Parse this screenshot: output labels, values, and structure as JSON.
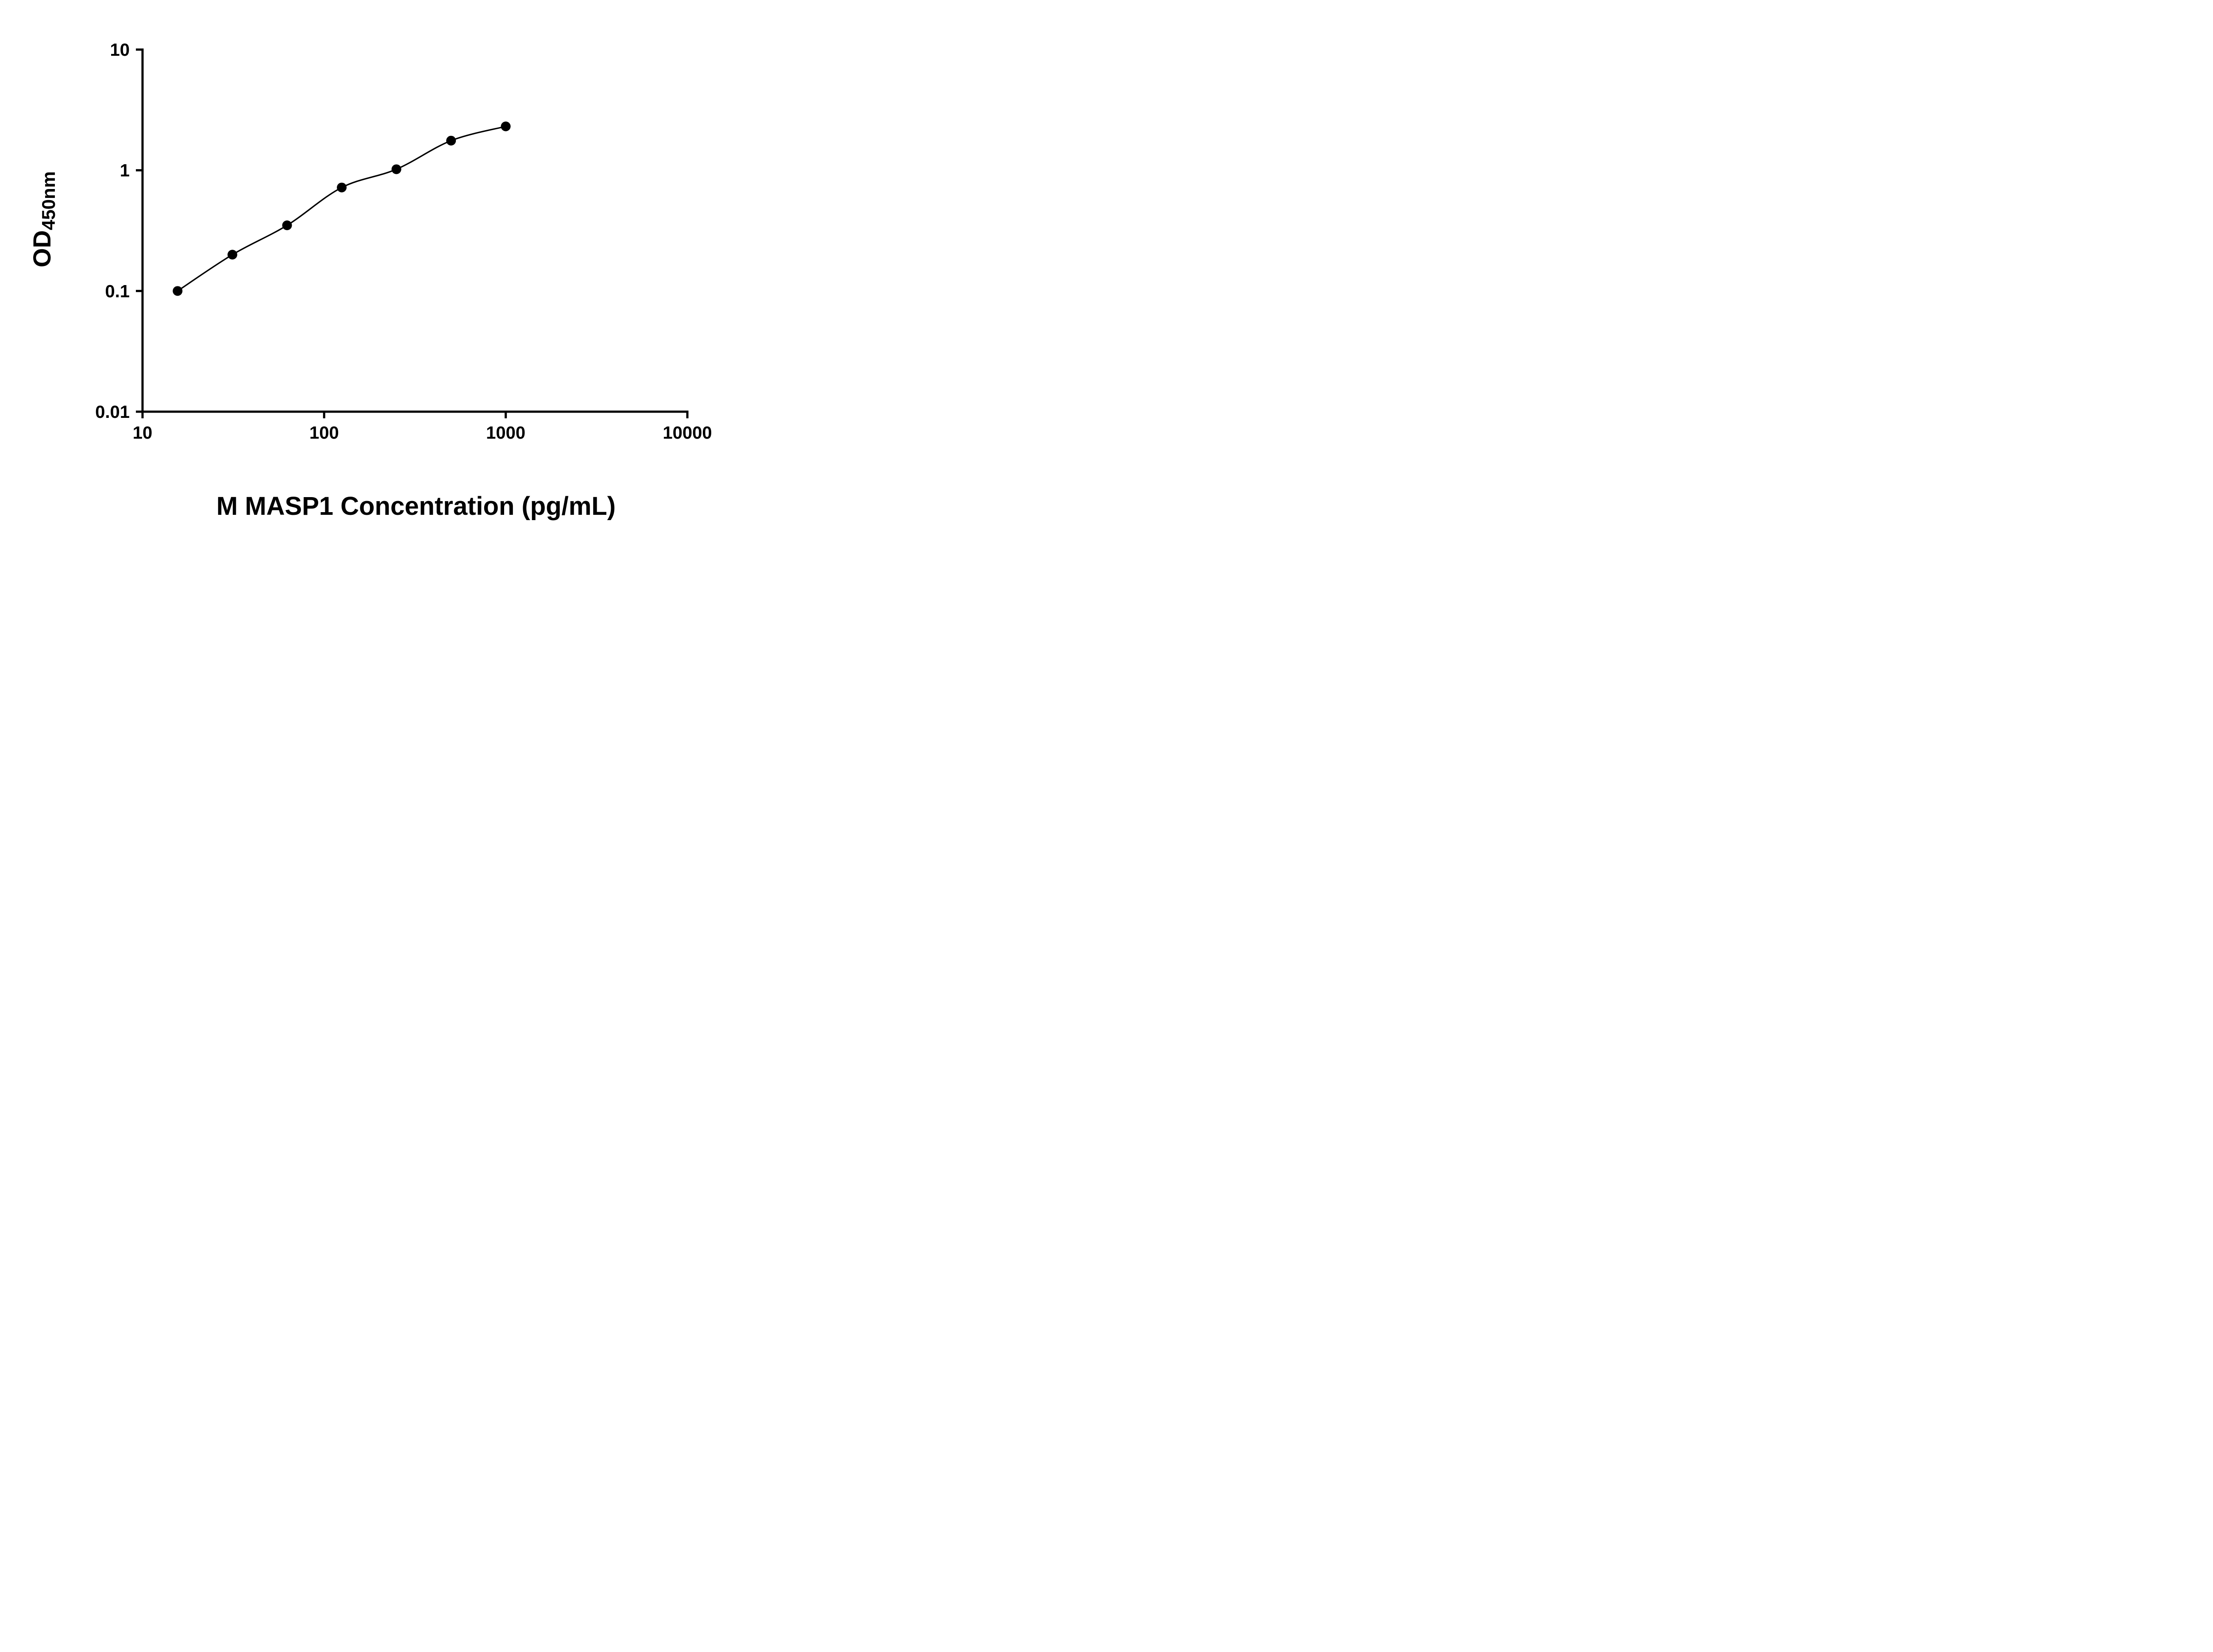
{
  "chart_data": {
    "type": "scatter",
    "title": "",
    "xlabel": "M MASP1 Concentration (pg/mL)",
    "ylabel": "OD",
    "ylabel_sub": "450nm",
    "x_scale": "log",
    "y_scale": "log",
    "xlim": [
      10,
      10000
    ],
    "ylim": [
      0.01,
      10
    ],
    "x_ticks": [
      10,
      100,
      1000,
      10000
    ],
    "x_tick_labels": [
      "10",
      "100",
      "1000",
      "10000"
    ],
    "y_ticks": [
      0.01,
      0.1,
      1,
      10
    ],
    "y_tick_labels": [
      "0.01",
      "0.1",
      "1",
      "10"
    ],
    "points": [
      {
        "x": 15.6,
        "y": 0.1
      },
      {
        "x": 31.25,
        "y": 0.2
      },
      {
        "x": 62.5,
        "y": 0.35
      },
      {
        "x": 125,
        "y": 0.72
      },
      {
        "x": 250,
        "y": 1.02
      },
      {
        "x": 500,
        "y": 1.76
      },
      {
        "x": 1000,
        "y": 2.31
      }
    ],
    "marker_color": "#000000",
    "line_color": "#000000",
    "axis_color": "#000000",
    "grid": false,
    "legend": false
  }
}
